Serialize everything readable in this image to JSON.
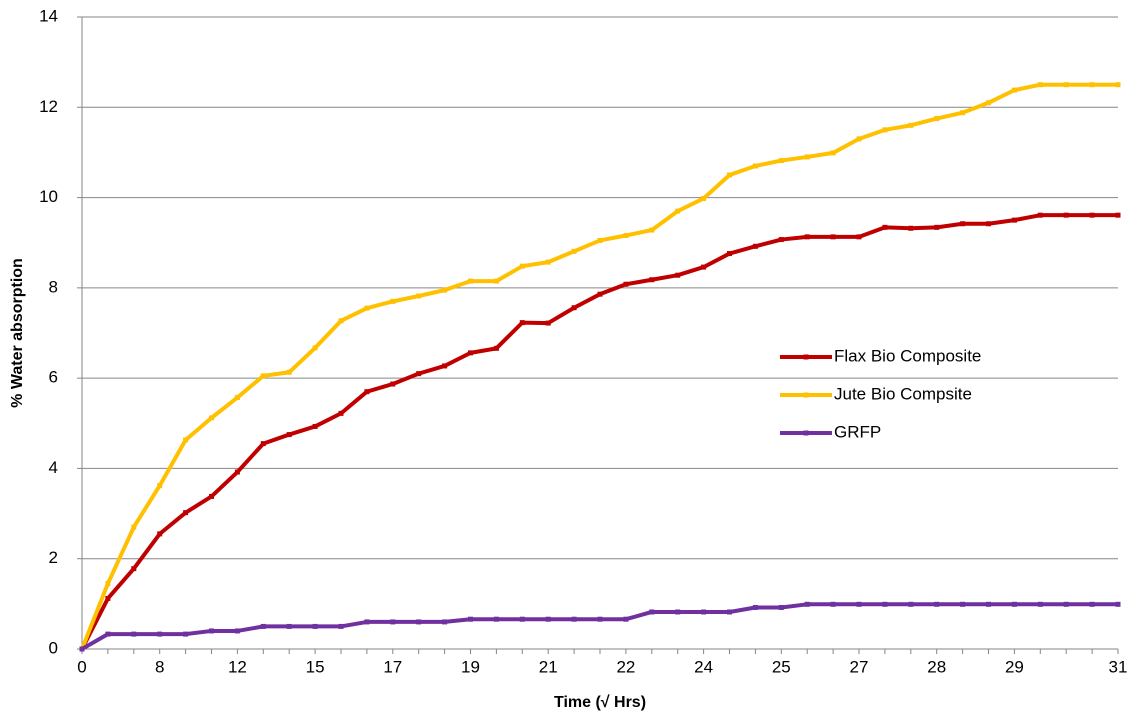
{
  "chart_data": {
    "type": "line",
    "xlabel": "Time (√ Hrs)",
    "ylabel": "% Water absorption",
    "categories": [
      "0",
      null,
      null,
      "8",
      null,
      null,
      "12",
      null,
      null,
      "15",
      null,
      null,
      "17",
      null,
      null,
      "19",
      null,
      null,
      "21",
      null,
      null,
      "22",
      null,
      null,
      "24",
      null,
      null,
      "25",
      null,
      null,
      "27",
      null,
      null,
      "28",
      null,
      null,
      "29",
      null,
      null,
      null,
      "31"
    ],
    "series": [
      {
        "name": "Flax Bio Composite",
        "color": "#c00000",
        "values": [
          0,
          1.12,
          1.78,
          2.55,
          3.02,
          3.38,
          3.92,
          4.55,
          4.75,
          4.93,
          5.22,
          5.7,
          5.87,
          6.1,
          6.27,
          6.56,
          6.66,
          7.23,
          7.22,
          7.56,
          7.86,
          8.08,
          8.18,
          8.28,
          8.46,
          8.76,
          8.92,
          9.07,
          9.13,
          9.13,
          9.13,
          9.34,
          9.32,
          9.34,
          9.42,
          9.42,
          9.5,
          9.61,
          9.61,
          9.61,
          9.61
        ]
      },
      {
        "name": "Jute Bio Compsite",
        "color": "#ffc000",
        "values": [
          0,
          1.45,
          2.7,
          3.62,
          4.63,
          5.12,
          5.57,
          6.05,
          6.13,
          6.67,
          7.27,
          7.55,
          7.7,
          7.82,
          7.95,
          8.15,
          8.15,
          8.48,
          8.57,
          8.81,
          9.05,
          9.16,
          9.28,
          9.7,
          9.98,
          10.5,
          10.7,
          10.82,
          10.9,
          10.99,
          11.3,
          11.5,
          11.6,
          11.75,
          11.88,
          12.1,
          12.38,
          12.5,
          12.5,
          12.5,
          12.5
        ]
      },
      {
        "name": "GRFP",
        "color": "#7030a0",
        "values": [
          0,
          0.33,
          0.33,
          0.33,
          0.33,
          0.4,
          0.4,
          0.5,
          0.5,
          0.5,
          0.5,
          0.6,
          0.6,
          0.6,
          0.6,
          0.66,
          0.66,
          0.66,
          0.66,
          0.66,
          0.66,
          0.66,
          0.82,
          0.82,
          0.82,
          0.82,
          0.92,
          0.92,
          0.99,
          0.99,
          0.99,
          0.99,
          0.99,
          0.99,
          0.99,
          0.99,
          0.99,
          0.99,
          0.99,
          0.99,
          0.99
        ]
      }
    ],
    "ylim": [
      0,
      14
    ],
    "yticks": [
      0,
      2,
      4,
      6,
      8,
      10,
      12,
      14
    ],
    "grid": true,
    "legend": "right"
  }
}
